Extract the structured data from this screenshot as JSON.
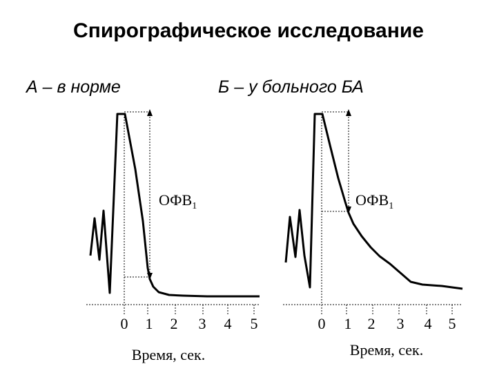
{
  "title": "Спирографическое исследование",
  "panels": [
    {
      "subtitle": "А – в норме",
      "marker_label": "ОФВ",
      "marker_sub": "1",
      "ticks": [
        "0",
        "1",
        "2",
        "3",
        "4",
        "5"
      ],
      "xlabel": "Время, сек."
    },
    {
      "subtitle": "Б – у больного БА",
      "marker_label": "ОФВ",
      "marker_sub": "1",
      "ticks": [
        "0",
        "1",
        "2",
        "3",
        "4",
        "5"
      ],
      "xlabel": "Время, сек."
    }
  ]
}
